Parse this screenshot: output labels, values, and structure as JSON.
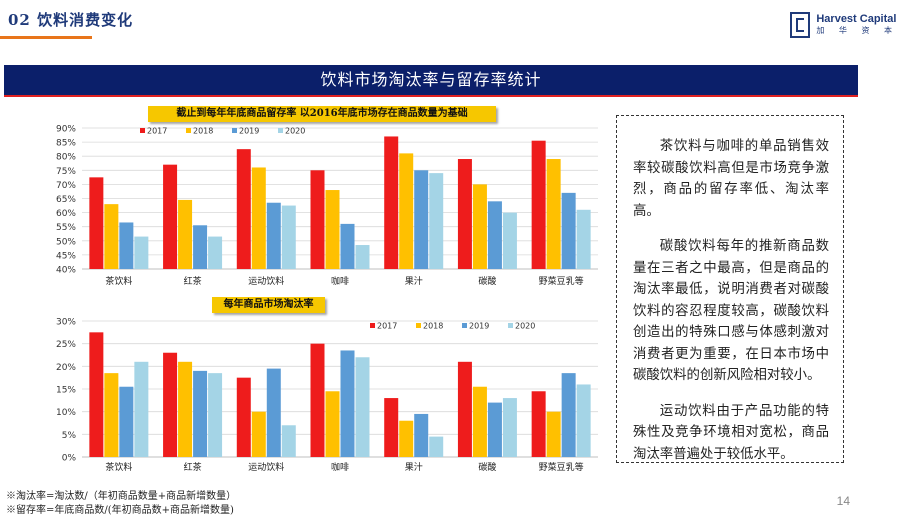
{
  "header": {
    "title": "02 饮料消费变化",
    "logo_en": "Harvest Capital",
    "logo_cn": "加 华 资 本"
  },
  "banner": {
    "title": "饮料市场淘汰率与留存率统计"
  },
  "colors": {
    "2017": "#ee1c1c",
    "2018": "#ffc000",
    "2019": "#5b9bd5",
    "2020": "#a4d4e6"
  },
  "chart_data": [
    {
      "type": "bar",
      "title": "截止到每年年底商品留存率 以2016年底市场存在商品数量为基础",
      "categories": [
        "茶饮料",
        "红茶",
        "运动饮料",
        "咖啡",
        "果汁",
        "碳酸",
        "野菜豆乳等"
      ],
      "series": [
        {
          "name": "2017",
          "values": [
            72.5,
            77,
            82.5,
            75,
            87,
            79,
            85.5
          ]
        },
        {
          "name": "2018",
          "values": [
            63,
            64.5,
            76,
            68,
            81,
            70,
            79
          ]
        },
        {
          "name": "2019",
          "values": [
            56.5,
            55.5,
            63.5,
            56,
            75,
            64,
            67
          ]
        },
        {
          "name": "2020",
          "values": [
            51.5,
            51.5,
            62.5,
            48.5,
            74,
            60,
            61
          ]
        }
      ],
      "ylim": [
        40,
        90
      ],
      "yticks": [
        "40%",
        "45%",
        "50%",
        "55%",
        "60%",
        "65%",
        "70%",
        "75%",
        "80%",
        "85%",
        "90%"
      ],
      "legend": "top-left"
    },
    {
      "type": "bar",
      "title": "每年商品市场淘汰率",
      "categories": [
        "茶饮料",
        "红茶",
        "运动饮料",
        "咖啡",
        "果汁",
        "碳酸",
        "野菜豆乳等"
      ],
      "series": [
        {
          "name": "2017",
          "values": [
            27.5,
            23,
            17.5,
            25,
            13,
            21,
            14.5
          ]
        },
        {
          "name": "2018",
          "values": [
            18.5,
            21,
            10,
            14.5,
            8,
            15.5,
            10
          ]
        },
        {
          "name": "2019",
          "values": [
            15.5,
            19,
            19.5,
            23.5,
            9.5,
            12,
            18.5
          ]
        },
        {
          "name": "2020",
          "values": [
            21,
            18.5,
            7,
            22,
            4.5,
            13,
            16
          ]
        }
      ],
      "ylim": [
        0,
        30
      ],
      "yticks": [
        "0%",
        "5%",
        "10%",
        "15%",
        "20%",
        "25%",
        "30%"
      ],
      "legend": "top-right"
    }
  ],
  "textbox": {
    "p1": "茶饮料与咖啡的单品销售效率较碳酸饮料高但是市场竞争激烈，商品的留存率低、淘汰率高。",
    "p2": "碳酸饮料每年的推新商品数量在三者之中最高，但是商品的淘汰率最低，说明消费者对碳酸饮料的容忍程度较高，碳酸饮料创造出的特殊口感与体感刺激对消费者更为重要，在日本市场中碳酸饮料的创新风险相对较小。",
    "p3": "运动饮料由于产品功能的特殊性及竞争环境相对宽松，商品淘汰率普遍处于较低水平。"
  },
  "notes": {
    "n1": "※淘汰率=淘汰数/（年初商品数量+商品新增数量）",
    "n2": "※留存率=年底商品数/(年初商品数+商品新增数量)"
  },
  "page_number": "14"
}
